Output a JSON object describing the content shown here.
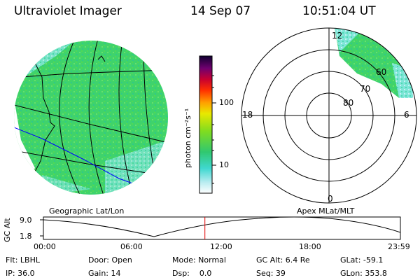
{
  "header": {
    "instrument": "Ultraviolet Imager",
    "date": "14 Sep 07",
    "time": "10:51:04 UT"
  },
  "colorbar": {
    "unit": "photon cm⁻²s⁻¹",
    "ticks": [
      {
        "label": "100",
        "value": 100
      },
      {
        "label": "10",
        "value": 10
      }
    ]
  },
  "geo_panel": {
    "label": "Geographic Lat/Lon"
  },
  "polar_panel": {
    "label": "Apex  MLat/MLT",
    "mlt_labels": [
      "12",
      "18",
      "6",
      "0"
    ],
    "lat_labels": [
      "60",
      "70",
      "80"
    ]
  },
  "timeline": {
    "ylabel": "GC Alt",
    "y_ticks": [
      "9.0",
      "1.8"
    ],
    "x_ticks": [
      "00:00",
      "06:00",
      "12:00",
      "18:00",
      "23:59"
    ],
    "current_time_hours": 10.85,
    "marker_color": "#e00000"
  },
  "status": {
    "flt": "Flt: LBHL",
    "door": "Door: Open",
    "mode": "Mode: Normal",
    "gc_alt": "GC Alt: 6.4 Re",
    "glat": "GLat: -59.1",
    "ip": "IP: 36.0",
    "gain": "Gain: 14",
    "dsp": "Dsp:    0.0",
    "seq": "Seq: 39",
    "glon": "GLon: 353.8"
  },
  "colors": {
    "aurora_main": "#3ed36a",
    "aurora_edge": "#5fe0c8",
    "coastline": "#000000",
    "track": "#0000ff"
  }
}
